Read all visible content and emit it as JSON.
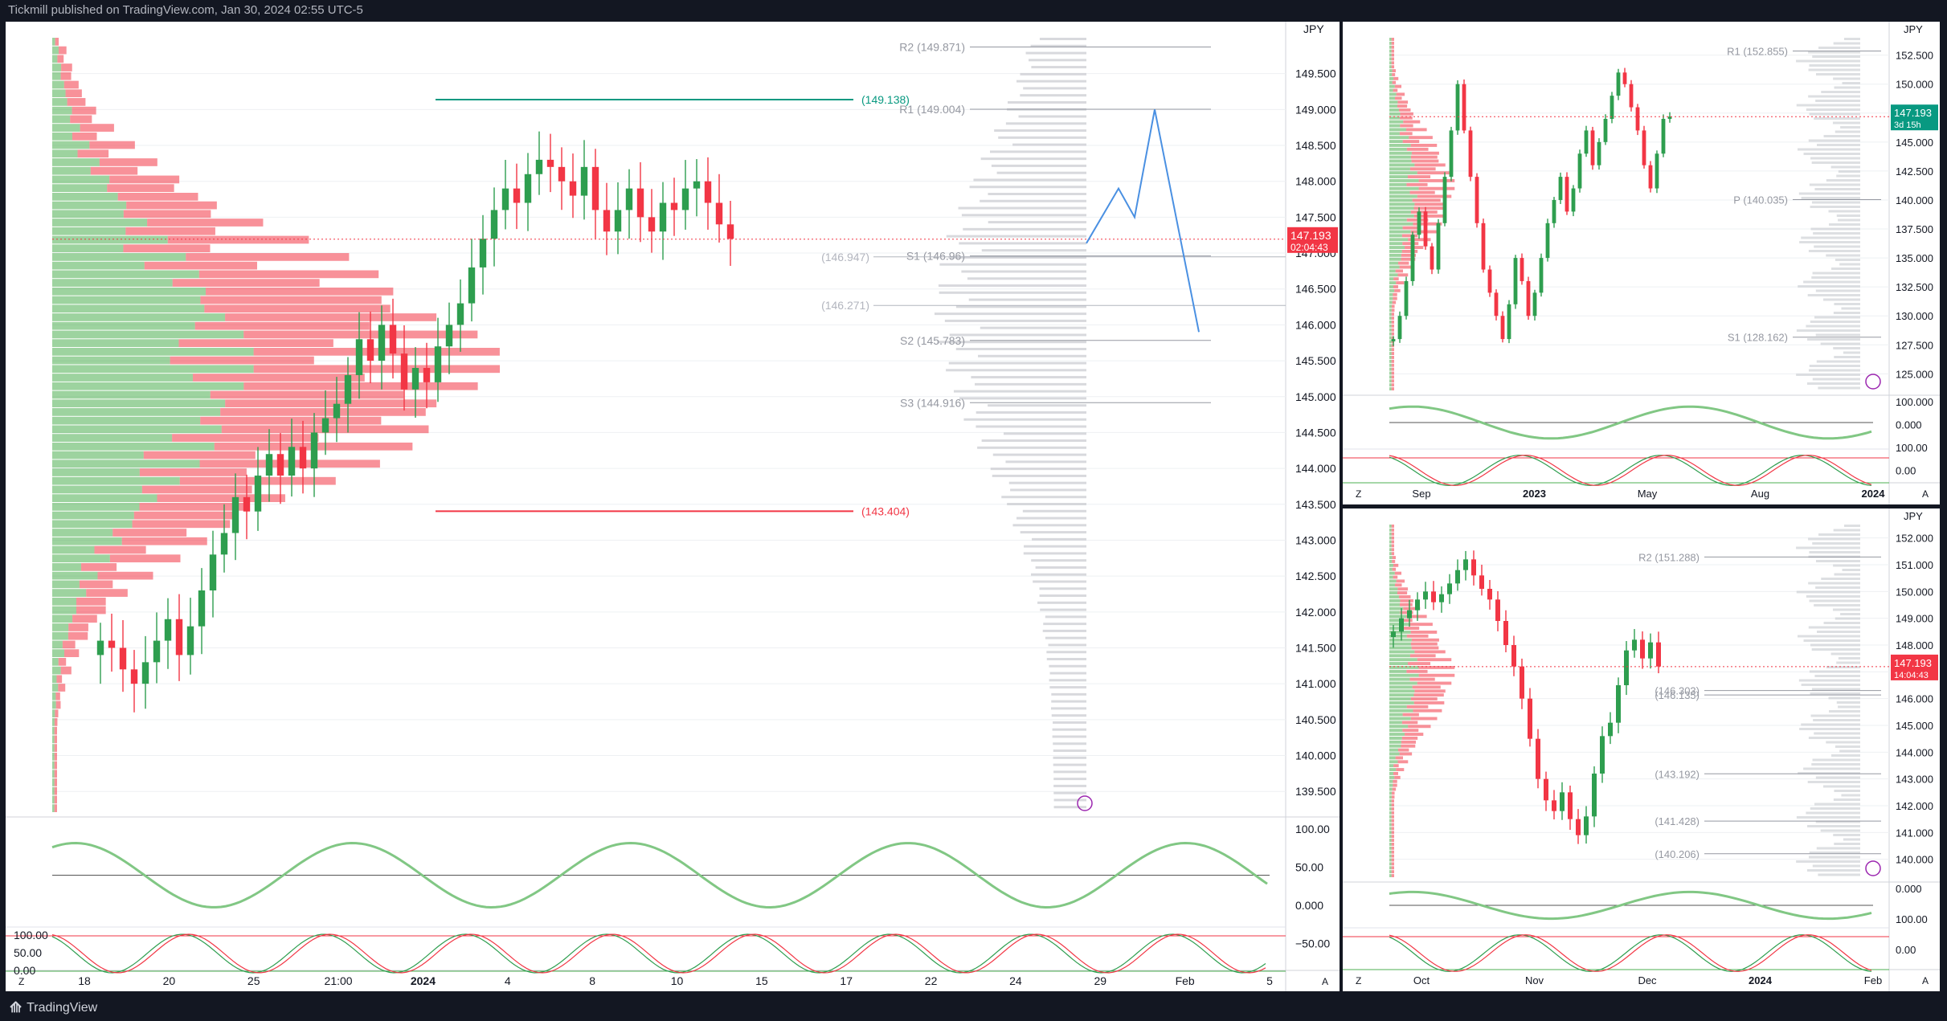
{
  "caption": "Tickmill published on TradingView.com, Jan 30, 2024 02:55 UTC-5",
  "brand": "TradingView",
  "colors": {
    "up": "#2e9e4f",
    "down": "#f23645",
    "bg": "#131722",
    "panel": "#ffffff"
  },
  "chart_data": [
    {
      "panel": "main",
      "type": "candlestick",
      "currency": "JPY",
      "price_scale": [
        "149.500",
        "149.000",
        "148.500",
        "148.000",
        "147.500",
        "147.000",
        "146.500",
        "146.000",
        "145.500",
        "145.000",
        "144.500",
        "144.000",
        "143.500",
        "143.000",
        "142.500",
        "142.000",
        "141.500",
        "141.000",
        "140.500",
        "140.000",
        "139.500"
      ],
      "ylim": [
        139.2,
        150.0
      ],
      "x_ticks": [
        "18",
        "20",
        "25",
        "21:00",
        "2024",
        "4",
        "8",
        "10",
        "15",
        "17",
        "22",
        "24",
        "29",
        "Feb",
        "5"
      ],
      "close_series": [
        141.6,
        141.5,
        141.2,
        141.0,
        141.3,
        141.6,
        141.9,
        141.4,
        141.8,
        142.3,
        142.8,
        143.1,
        143.6,
        143.4,
        143.9,
        144.2,
        143.9,
        144.3,
        144.0,
        144.5,
        144.7,
        144.9,
        145.3,
        145.8,
        145.5,
        146.0,
        145.6,
        145.1,
        145.4,
        145.2,
        145.7,
        146.0,
        146.3,
        146.8,
        147.2,
        147.6,
        147.9,
        147.7,
        148.1,
        148.3,
        148.2,
        148.0,
        147.8,
        148.2,
        147.6,
        147.3,
        147.6,
        147.9,
        147.5,
        147.3,
        147.7,
        147.6,
        147.9,
        148.0,
        147.7,
        147.4,
        147.2
      ],
      "close_start_slot": 60,
      "close_slot_step": 14,
      "current_price": "147.193",
      "countdown": "02:04:43",
      "levels": [
        {
          "label": "(149.138)",
          "value": 149.138,
          "color": "#089981"
        },
        {
          "label": "(143.404)",
          "value": 143.404,
          "color": "#f23645"
        },
        {
          "label": "(146.947)",
          "value": 146.947,
          "color": "#b2b5be"
        },
        {
          "label": "(146.271)",
          "value": 146.271,
          "color": "#b2b5be"
        }
      ],
      "pivots": [
        {
          "label": "R2 (149.871)",
          "value": 149.871
        },
        {
          "label": "R1 (149.004)",
          "value": 149.004
        },
        {
          "label": "S1 (146.96)",
          "value": 146.96
        },
        {
          "label": "S2 (145.783)",
          "value": 145.783
        },
        {
          "label": "S3 (144.916)",
          "value": 144.916
        }
      ],
      "oscillator_scale": [
        "100.00",
        "50.00",
        "0.000",
        "−50.00"
      ],
      "stoch_scale": [
        "100.00",
        "50.00",
        "0.00"
      ]
    },
    {
      "panel": "top-right",
      "type": "candlestick",
      "currency": "JPY",
      "price_scale": [
        "152.500",
        "150.000",
        "147.500",
        "145.000",
        "142.500",
        "140.000",
        "137.500",
        "135.000",
        "132.500",
        "130.000",
        "127.500",
        "125.000"
      ],
      "ylim": [
        123.5,
        154.0
      ],
      "x_ticks": [
        "Sep",
        "2023",
        "May",
        "Aug",
        "2024"
      ],
      "close_series": [
        128,
        130,
        133,
        137,
        139,
        136,
        134,
        138,
        142,
        146,
        150,
        146,
        142,
        138,
        134,
        132,
        130,
        128,
        131,
        135,
        133,
        130,
        132,
        135,
        138,
        140,
        142,
        139,
        141,
        144,
        146,
        143,
        145,
        147,
        149,
        151,
        150,
        148,
        146,
        143,
        141,
        144,
        147,
        147.2
      ],
      "close_start_slot": 5,
      "close_slot_step": 8,
      "current_price": "147.193",
      "countdown": "3d 15h",
      "pivots": [
        {
          "label": "R1 (152.855)",
          "value": 152.855
        },
        {
          "label": "P (140.035)",
          "value": 140.035
        },
        {
          "label": "S1 (128.162)",
          "value": 128.162
        }
      ],
      "oscillator_scale": [
        "100.000",
        "0.000",
        "100.00",
        "0.00"
      ]
    },
    {
      "panel": "bottom-right",
      "type": "candlestick",
      "currency": "JPY",
      "price_scale": [
        "152.000",
        "151.000",
        "150.000",
        "149.000",
        "148.000",
        "147.000",
        "146.000",
        "145.000",
        "144.000",
        "143.000",
        "142.000",
        "141.000",
        "140.000"
      ],
      "ylim": [
        139.3,
        152.5
      ],
      "x_ticks": [
        "Oct",
        "Nov",
        "Dec",
        "2024",
        "Feb"
      ],
      "close_series": [
        148.5,
        149.0,
        149.3,
        149.7,
        150.0,
        149.6,
        149.9,
        150.3,
        150.8,
        151.2,
        150.6,
        150.1,
        149.7,
        148.9,
        148.0,
        147.2,
        146.0,
        144.5,
        143.0,
        142.2,
        141.8,
        142.5,
        141.5,
        140.9,
        141.6,
        143.2,
        144.6,
        145.1,
        146.5,
        147.8,
        148.2,
        147.5,
        148.1,
        147.2
      ],
      "close_start_slot": 5,
      "close_slot_step": 10,
      "current_price": "147.193",
      "countdown": "14:04:43",
      "pivots": [
        {
          "label": "R2 (151.288)",
          "value": 151.288
        },
        {
          "label": "(146.303)",
          "value": 146.303
        },
        {
          "label": "(146.135)",
          "value": 146.135
        },
        {
          "label": "(143.192)",
          "value": 143.192
        },
        {
          "label": "(141.428)",
          "value": 141.428
        },
        {
          "label": "(140.206)",
          "value": 140.206
        }
      ],
      "oscillator_scale": [
        "0.000",
        "100.00",
        "0.00"
      ]
    }
  ]
}
